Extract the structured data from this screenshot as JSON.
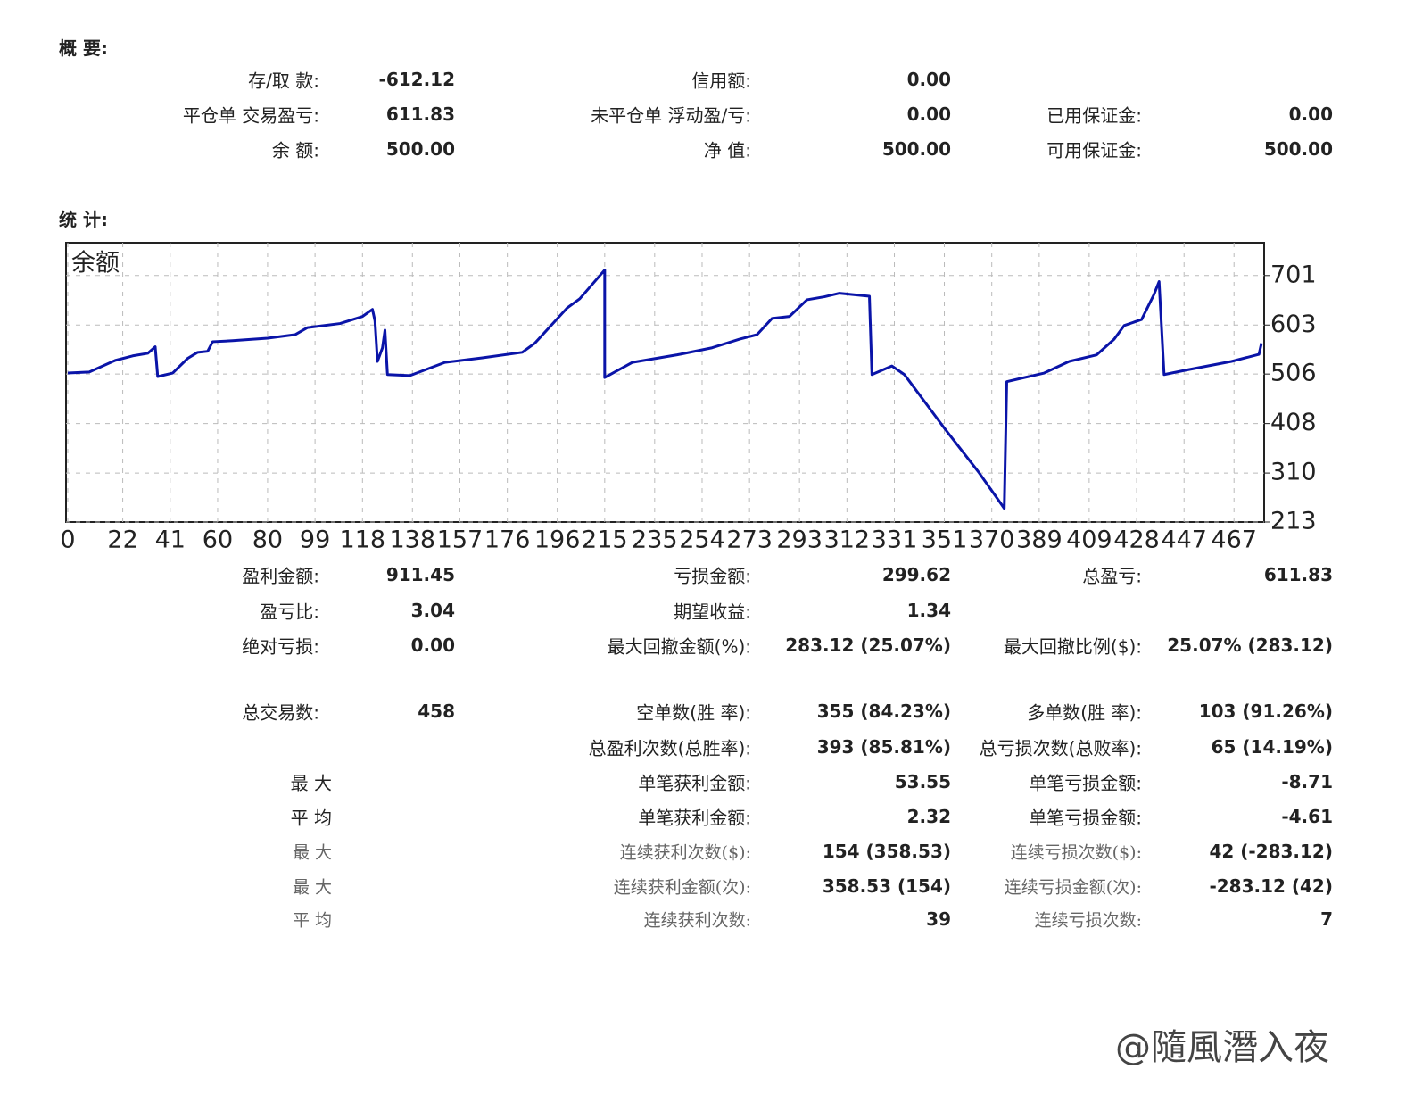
{
  "summary": {
    "title": "概 要:",
    "rows": [
      [
        "存/取 款:",
        "-612.12",
        "信用额:",
        "0.00",
        null,
        null
      ],
      [
        "平仓单 交易盈亏:",
        "611.83",
        "未平仓单 浮动盈/亏:",
        "0.00",
        "已用保证金:",
        "0.00"
      ],
      [
        "余 额:",
        "500.00",
        "净 值:",
        "500.00",
        "可用保证金:",
        "500.00"
      ]
    ]
  },
  "statistics": {
    "title": "统 计:",
    "rows": [
      [
        "盈利金额:",
        "911.45",
        "亏损金额:",
        "299.62",
        "总盈亏:",
        "611.83"
      ],
      [
        "盈亏比:",
        "3.04",
        "期望收益:",
        "1.34",
        null,
        null
      ],
      [
        "绝对亏损:",
        "0.00",
        "最大回撤金额(%):",
        "283.12 (25.07%)",
        "最大回撤比例($):",
        "25.07% (283.12)"
      ],
      [
        "总交易数:",
        "458",
        "空单数(胜 率):",
        "355 (84.23%)",
        "多单数(胜 率):",
        "103 (91.26%)"
      ],
      [
        null,
        null,
        "总盈利次数(总胜率):",
        "393 (85.81%)",
        "总亏损次数(总败率):",
        "65 (14.19%)"
      ],
      [
        "最 大",
        null,
        "单笔获利金额:",
        "53.55",
        "单笔亏损金额:",
        "-8.71"
      ],
      [
        "平 均",
        null,
        "单笔获利金额:",
        "2.32",
        "单笔亏损金额:",
        "-4.61"
      ],
      [
        "最 大",
        null,
        "连续获利次数($):",
        "154 (358.53)",
        "连续亏损次数($):",
        "42 (-283.12)"
      ],
      [
        "最 大",
        null,
        "连续获利金额(次):",
        "358.53 (154)",
        "连续亏损金额(次):",
        "-283.12 (42)"
      ],
      [
        "平 均",
        null,
        "连续获利次数:",
        "39",
        "连续亏损次数:",
        "7"
      ]
    ]
  },
  "chart_data": {
    "type": "line",
    "title": "余额",
    "color": "#0a14a8",
    "grid": true,
    "x": [
      0,
      8.6,
      19,
      26,
      32,
      35,
      36,
      42,
      48,
      52,
      56,
      58,
      66,
      80,
      91,
      96,
      109,
      118,
      122,
      123,
      124,
      126,
      127,
      128,
      137,
      151,
      166,
      182,
      187,
      200,
      205,
      215,
      215,
      226,
      244,
      258,
      269,
      276,
      282,
      289,
      296,
      303,
      309,
      321,
      322,
      330,
      335,
      351,
      365,
      373,
      375,
      376,
      391,
      401,
      412,
      419,
      423,
      430,
      435,
      437,
      439,
      448,
      466,
      477,
      478
    ],
    "values": [
      508,
      510,
      533,
      542,
      547,
      560,
      501,
      508,
      537,
      549,
      551,
      570,
      572,
      577,
      584,
      598,
      606,
      620,
      634,
      611,
      531,
      558,
      593,
      505,
      503,
      529,
      538,
      549,
      567,
      637,
      655,
      712,
      499,
      529,
      544,
      558,
      575,
      584,
      616,
      620,
      653,
      659,
      666,
      660,
      505,
      522,
      505,
      399,
      310,
      254,
      240,
      491,
      508,
      531,
      544,
      575,
      602,
      614,
      664,
      689,
      505,
      514,
      531,
      545,
      567
    ],
    "xlim": [
      0,
      478
    ],
    "ylim": [
      213,
      766
    ],
    "xticks": [
      0,
      22,
      41,
      60,
      80,
      99,
      118,
      138,
      157,
      176,
      196,
      215,
      235,
      254,
      273,
      293,
      312,
      331,
      351,
      370,
      389,
      409,
      428,
      447,
      467
    ],
    "yticks": [
      213,
      310,
      408,
      506,
      603,
      701
    ]
  },
  "watermark": "@隨風潛入夜"
}
